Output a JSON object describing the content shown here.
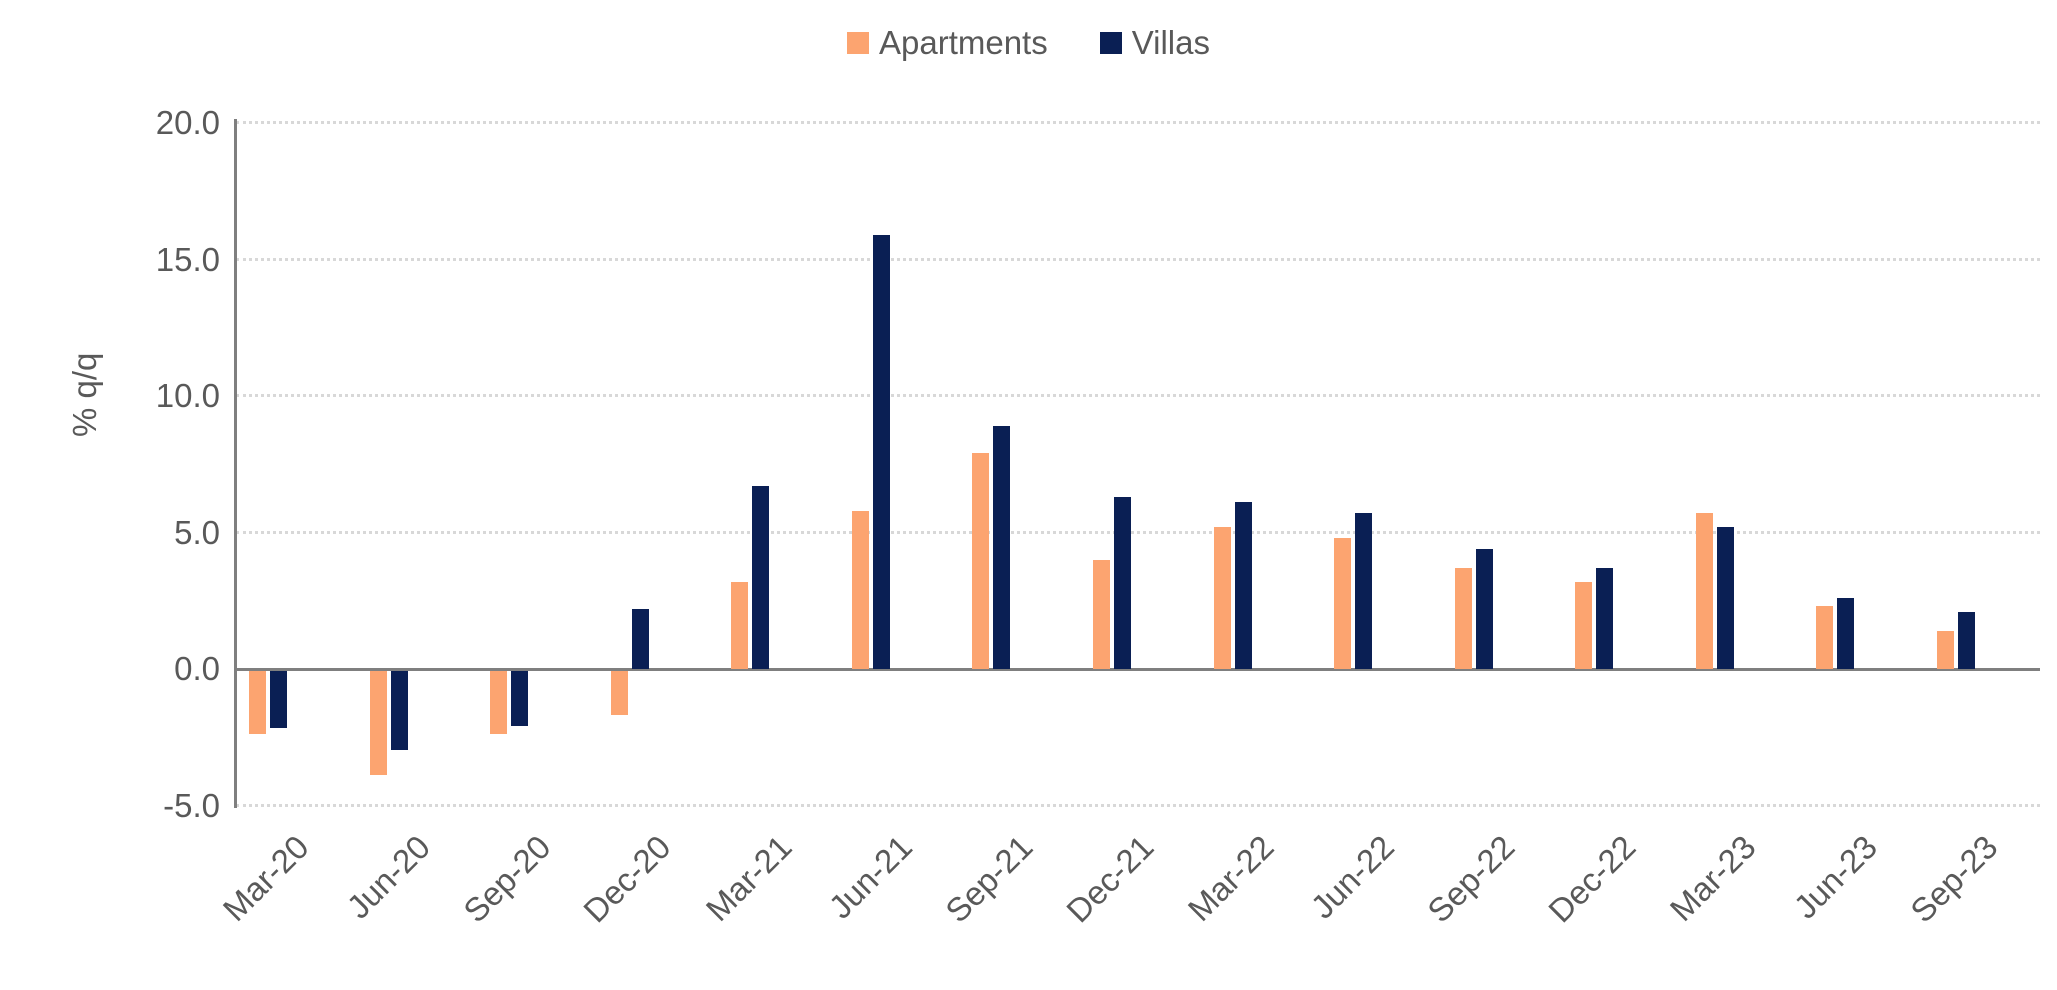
{
  "legend": {
    "items": [
      {
        "label": "Apartments",
        "color": "#FCA470"
      },
      {
        "label": "Villas",
        "color": "#0A1F54"
      }
    ]
  },
  "chart_data": {
    "type": "bar",
    "title": "",
    "xlabel": "",
    "ylabel": "% q/q",
    "ylim": [
      -5.0,
      20.0
    ],
    "grid": "horizontal dotted gridlines at labeled ticks, solid gray zero line",
    "legend_position": "top-center",
    "categories": [
      "Mar-20",
      "Jun-20",
      "Sep-20",
      "Dec-20",
      "Mar-21",
      "Jun-21",
      "Sep-21",
      "Dec-21",
      "Mar-22",
      "Jun-22",
      "Sep-22",
      "Dec-22",
      "Mar-23",
      "Jun-23",
      "Sep-23"
    ],
    "series": [
      {
        "name": "Apartments",
        "color": "#FCA470",
        "values": [
          -2.3,
          -3.8,
          -2.3,
          -1.6,
          3.2,
          5.8,
          7.9,
          4.0,
          5.2,
          4.8,
          3.7,
          3.2,
          5.7,
          2.3,
          1.4
        ]
      },
      {
        "name": "Villas",
        "color": "#0A1F54",
        "values": [
          -2.1,
          -2.9,
          -2.0,
          2.2,
          6.7,
          15.9,
          8.9,
          6.3,
          6.1,
          5.7,
          4.4,
          3.7,
          5.2,
          2.6,
          2.1
        ]
      }
    ],
    "ytick_values": [
      20.0,
      15.0,
      10.0,
      5.0,
      0.0,
      -5.0
    ],
    "ytick_labels": [
      "20.0",
      "15.0",
      "10.0",
      "5.0",
      "0.0",
      "-5.0"
    ]
  },
  "colors": {
    "axis_line": "#7F7F7F",
    "gridline": "#D8D8D8",
    "tick_text": "#595959",
    "background": "#FFFFFF"
  }
}
